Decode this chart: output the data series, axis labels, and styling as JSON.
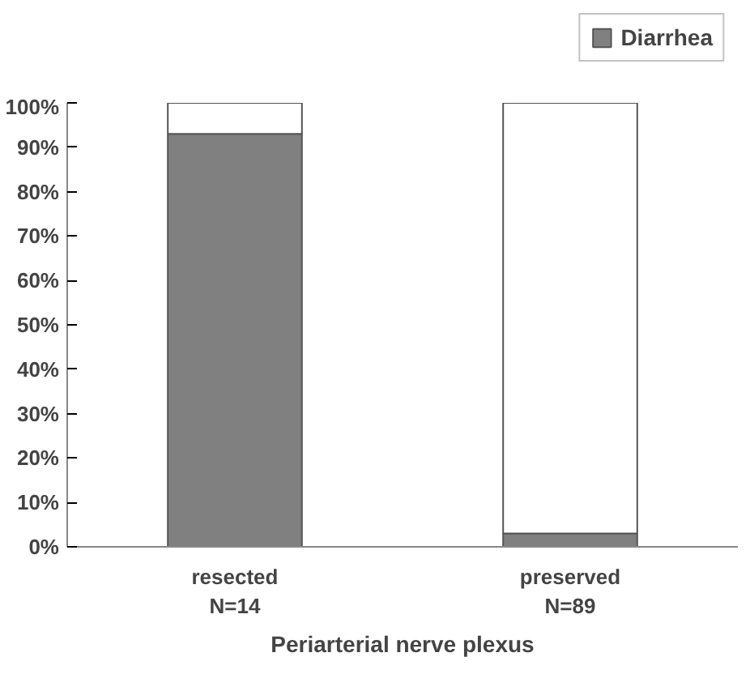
{
  "chart_data": {
    "type": "bar",
    "stacked": true,
    "categories": [
      "resected\nN=14",
      "preserved\nN=89"
    ],
    "xlabel": "Periarterial nerve plexus",
    "series": [
      {
        "name": "Diarrhea",
        "color": "#808080",
        "values": [
          93,
          3
        ]
      },
      {
        "color": "#ffffff",
        "values": [
          7,
          97
        ]
      }
    ],
    "ylim": [
      0,
      100
    ],
    "yticks": [
      {
        "value": 0,
        "label": "0%"
      },
      {
        "value": 10,
        "label": "10%"
      },
      {
        "value": 20,
        "label": "20%"
      },
      {
        "value": 30,
        "label": "30%"
      },
      {
        "value": 40,
        "label": "40%"
      },
      {
        "value": 50,
        "label": "50%"
      },
      {
        "value": 60,
        "label": "60%"
      },
      {
        "value": 70,
        "label": "70%"
      },
      {
        "value": 80,
        "label": "80%"
      },
      {
        "value": 90,
        "label": "90%"
      },
      {
        "value": 100,
        "label": "100%"
      }
    ],
    "grid": false,
    "legend": "top right"
  }
}
